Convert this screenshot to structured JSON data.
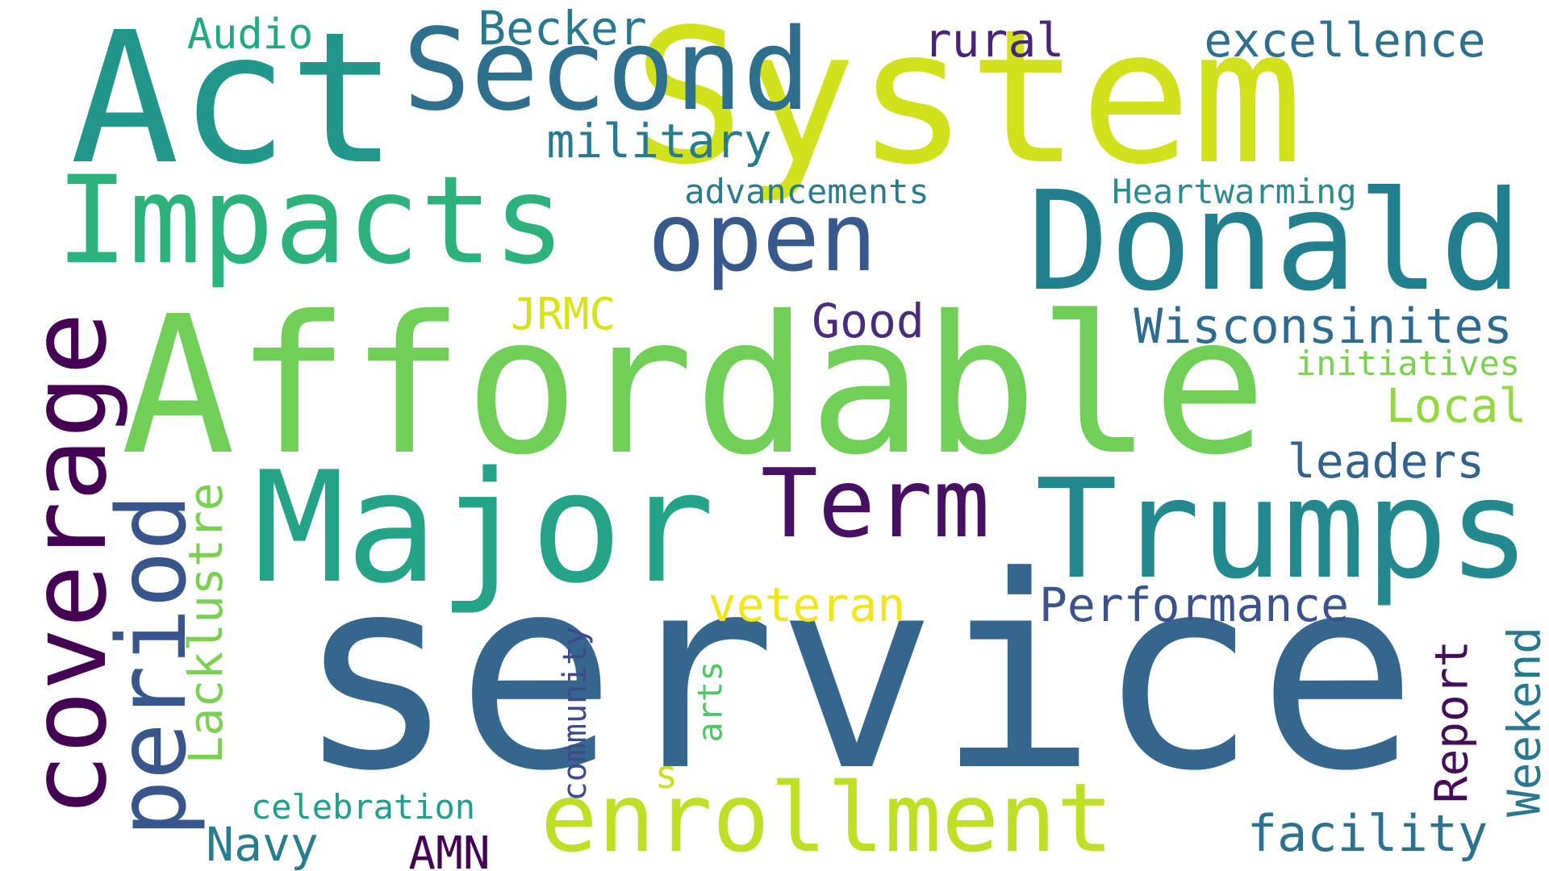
{
  "words": [
    {
      "text": "service",
      "color": "#35668d"
    },
    {
      "text": "Affordable",
      "color": "#6fcf56"
    },
    {
      "text": "System",
      "color": "#d1e11b"
    },
    {
      "text": "Act",
      "color": "#21968a"
    },
    {
      "text": "Major",
      "color": "#25a386"
    },
    {
      "text": "Trumps",
      "color": "#23898e"
    },
    {
      "text": "Donald",
      "color": "#22808e"
    },
    {
      "text": "Impacts",
      "color": "#2db27d"
    },
    {
      "text": "coverage",
      "color": "#440154"
    },
    {
      "text": "Second",
      "color": "#2e6f8e"
    },
    {
      "text": "enrollment",
      "color": "#bddf26"
    },
    {
      "text": "period",
      "color": "#39568c"
    },
    {
      "text": "Term",
      "color": "#471163"
    },
    {
      "text": "open",
      "color": "#38598c"
    },
    {
      "text": "Wisconsinites",
      "color": "#2e6b8e"
    },
    {
      "text": "Performance",
      "color": "#3b528b"
    },
    {
      "text": "facility",
      "color": "#2c728e"
    },
    {
      "text": "leaders",
      "color": "#33638d"
    },
    {
      "text": "excellence",
      "color": "#2e6f8e"
    },
    {
      "text": "military",
      "color": "#297a8e"
    },
    {
      "text": "veteran",
      "color": "#f1e51d"
    },
    {
      "text": "Becker",
      "color": "#2a788e"
    },
    {
      "text": "rural",
      "color": "#482576"
    },
    {
      "text": "Good",
      "color": "#472d7b"
    },
    {
      "text": "Local",
      "color": "#93d741"
    },
    {
      "text": "Lacklustre",
      "color": "#7ad151"
    },
    {
      "text": "Navy",
      "color": "#287d8e"
    },
    {
      "text": "Weekend",
      "color": "#2a788e"
    },
    {
      "text": "Report",
      "color": "#440d5a"
    },
    {
      "text": "Heartwarming",
      "color": "#2c8b8c"
    },
    {
      "text": "advancements",
      "color": "#2b7b8e"
    },
    {
      "text": "Audio",
      "color": "#22a884"
    },
    {
      "text": "JRMC",
      "color": "#d8e219"
    },
    {
      "text": "celebration",
      "color": "#1f9e89"
    },
    {
      "text": "initiatives",
      "color": "#7ad151"
    },
    {
      "text": "AMN",
      "color": "#440154"
    },
    {
      "text": "community",
      "color": "#3e4a89"
    },
    {
      "text": "arts",
      "color": "#52c569"
    },
    {
      "text": "s",
      "color": "#c8e020"
    }
  ]
}
